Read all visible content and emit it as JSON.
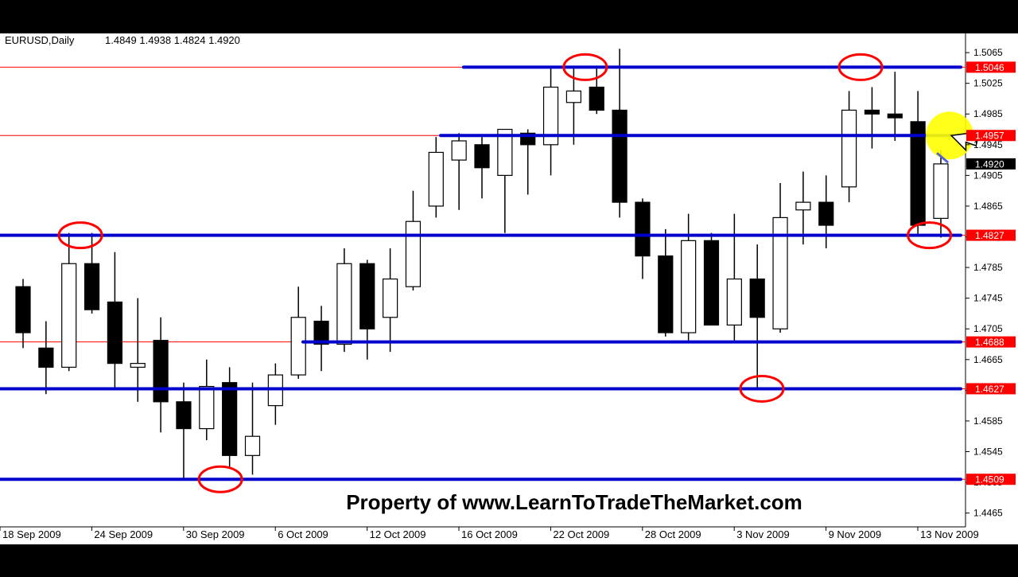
{
  "chart_data": {
    "type": "candlestick",
    "header": {
      "symbol_label": "EURUSD,Daily",
      "ohlc_values": "1.4849 1.4938 1.4824 1.4920"
    },
    "ylim": [
      1.4447,
      1.509
    ],
    "y_ticks": [
      "1.5065",
      "1.5025",
      "1.4985",
      "1.4945",
      "1.4905",
      "1.4865",
      "1.4825",
      "1.4785",
      "1.4745",
      "1.4705",
      "1.4665",
      "1.4625",
      "1.4585",
      "1.4545",
      "1.4505",
      "1.4465"
    ],
    "x_ticks": [
      {
        "label": "18 Sep 2009",
        "index": 0
      },
      {
        "label": "24 Sep 2009",
        "index": 4
      },
      {
        "label": "30 Sep 2009",
        "index": 8
      },
      {
        "label": "6 Oct 2009",
        "index": 12
      },
      {
        "label": "12 Oct 2009",
        "index": 16
      },
      {
        "label": "16 Oct 2009",
        "index": 20
      },
      {
        "label": "22 Oct 2009",
        "index": 24
      },
      {
        "label": "28 Oct 2009",
        "index": 28
      },
      {
        "label": "3 Nov 2009",
        "index": 32
      },
      {
        "label": "9 Nov 2009",
        "index": 36
      },
      {
        "label": "13 Nov 2009",
        "index": 40
      }
    ],
    "bar_count": 41,
    "candles": [
      {
        "o": 1.476,
        "h": 1.477,
        "l": 1.468,
        "c": 1.47
      },
      {
        "o": 1.468,
        "h": 1.4715,
        "l": 1.462,
        "c": 1.4655
      },
      {
        "o": 1.4655,
        "h": 1.483,
        "l": 1.465,
        "c": 1.479
      },
      {
        "o": 1.479,
        "h": 1.483,
        "l": 1.4725,
        "c": 1.473
      },
      {
        "o": 1.474,
        "h": 1.4805,
        "l": 1.4625,
        "c": 1.466
      },
      {
        "o": 1.4655,
        "h": 1.4745,
        "l": 1.461,
        "c": 1.466
      },
      {
        "o": 1.469,
        "h": 1.472,
        "l": 1.457,
        "c": 1.461
      },
      {
        "o": 1.461,
        "h": 1.4635,
        "l": 1.451,
        "c": 1.4575
      },
      {
        "o": 1.4575,
        "h": 1.4665,
        "l": 1.456,
        "c": 1.463
      },
      {
        "o": 1.4635,
        "h": 1.4655,
        "l": 1.4525,
        "c": 1.454
      },
      {
        "o": 1.454,
        "h": 1.4635,
        "l": 1.4515,
        "c": 1.4565
      },
      {
        "o": 1.4605,
        "h": 1.466,
        "l": 1.458,
        "c": 1.4645
      },
      {
        "o": 1.4645,
        "h": 1.476,
        "l": 1.464,
        "c": 1.472
      },
      {
        "o": 1.4715,
        "h": 1.4735,
        "l": 1.465,
        "c": 1.4685
      },
      {
        "o": 1.4685,
        "h": 1.481,
        "l": 1.4675,
        "c": 1.479
      },
      {
        "o": 1.479,
        "h": 1.4795,
        "l": 1.4665,
        "c": 1.4705
      },
      {
        "o": 1.472,
        "h": 1.481,
        "l": 1.4675,
        "c": 1.477
      },
      {
        "o": 1.476,
        "h": 1.4885,
        "l": 1.4755,
        "c": 1.4845
      },
      {
        "o": 1.4865,
        "h": 1.4955,
        "l": 1.485,
        "c": 1.4935
      },
      {
        "o": 1.4925,
        "h": 1.496,
        "l": 1.486,
        "c": 1.495
      },
      {
        "o": 1.4945,
        "h": 1.4955,
        "l": 1.4875,
        "c": 1.4915
      },
      {
        "o": 1.4905,
        "h": 1.4965,
        "l": 1.483,
        "c": 1.4965
      },
      {
        "o": 1.496,
        "h": 1.4965,
        "l": 1.488,
        "c": 1.4945
      },
      {
        "o": 1.4945,
        "h": 1.5045,
        "l": 1.4905,
        "c": 1.502
      },
      {
        "o": 1.5,
        "h": 1.5045,
        "l": 1.4945,
        "c": 1.5015
      },
      {
        "o": 1.502,
        "h": 1.5045,
        "l": 1.4985,
        "c": 1.499
      },
      {
        "o": 1.499,
        "h": 1.507,
        "l": 1.485,
        "c": 1.487
      },
      {
        "o": 1.487,
        "h": 1.4875,
        "l": 1.477,
        "c": 1.48
      },
      {
        "o": 1.48,
        "h": 1.4835,
        "l": 1.4695,
        "c": 1.47
      },
      {
        "o": 1.47,
        "h": 1.4855,
        "l": 1.469,
        "c": 1.482
      },
      {
        "o": 1.482,
        "h": 1.483,
        "l": 1.471,
        "c": 1.471
      },
      {
        "o": 1.471,
        "h": 1.4855,
        "l": 1.469,
        "c": 1.477
      },
      {
        "o": 1.477,
        "h": 1.4815,
        "l": 1.4625,
        "c": 1.472
      },
      {
        "o": 1.4705,
        "h": 1.4895,
        "l": 1.47,
        "c": 1.485
      },
      {
        "o": 1.486,
        "h": 1.491,
        "l": 1.4815,
        "c": 1.487
      },
      {
        "o": 1.487,
        "h": 1.4905,
        "l": 1.481,
        "c": 1.484
      },
      {
        "o": 1.489,
        "h": 1.5015,
        "l": 1.487,
        "c": 1.499
      },
      {
        "o": 1.499,
        "h": 1.502,
        "l": 1.494,
        "c": 1.4985
      },
      {
        "o": 1.4985,
        "h": 1.504,
        "l": 1.495,
        "c": 1.498
      },
      {
        "o": 1.4975,
        "h": 1.5015,
        "l": 1.4825,
        "c": 1.484
      },
      {
        "o": 1.4849,
        "h": 1.4938,
        "l": 1.4824,
        "c": 1.492
      }
    ],
    "red_levels": [
      1.5046,
      1.4957,
      1.4827,
      1.4688,
      1.4627,
      1.4509
    ],
    "blue_lines": [
      {
        "y": 1.5046,
        "from_index": 19.2,
        "to_index": 41.6
      },
      {
        "y": 1.4957,
        "from_index": 18.2,
        "to_index": 41.6
      },
      {
        "y": 1.4827,
        "from_index": -2,
        "to_index": 41.6
      },
      {
        "y": 1.4688,
        "from_index": 12.2,
        "to_index": 41.6
      },
      {
        "y": 1.4627,
        "from_index": -1.5,
        "to_index": 41.6
      },
      {
        "y": 1.4509,
        "from_index": -2,
        "to_index": 41.6
      }
    ],
    "price_tags": [
      {
        "label": "1.5046",
        "value": 1.5046,
        "color": "#ff0000"
      },
      {
        "label": "1.4957",
        "value": 1.4957,
        "color": "#ff0000"
      },
      {
        "label": "1.4920",
        "value": 1.492,
        "color": "#000000"
      },
      {
        "label": "1.4827",
        "value": 1.4827,
        "color": "#ff0000"
      },
      {
        "label": "1.4688",
        "value": 1.4688,
        "color": "#ff0000"
      },
      {
        "label": "1.4627",
        "value": 1.4627,
        "color": "#ff0000"
      },
      {
        "label": "1.4509",
        "value": 1.4509,
        "color": "#ff0000"
      }
    ],
    "circled_points": [
      {
        "index": 2.5,
        "value": 1.4827
      },
      {
        "index": 8.6,
        "value": 1.4509
      },
      {
        "index": 24.5,
        "value": 1.5046
      },
      {
        "index": 36.5,
        "value": 1.5046
      },
      {
        "index": 39.5,
        "value": 1.4827
      },
      {
        "index": 32.2,
        "value": 1.4627
      }
    ],
    "highlight_marker": {
      "index": 40.8,
      "value": 1.4957
    },
    "watermark": "Property of www.LearnToTradeTheMarket.com",
    "colors": {
      "background": "#ffffff",
      "frame": "#000000",
      "bull_body": "#ffffff",
      "bear_body": "#000000",
      "level_line": "#0000cc",
      "red_line": "#ff0000",
      "annotation": "#ff0000",
      "highlight": "#ffff00"
    }
  }
}
